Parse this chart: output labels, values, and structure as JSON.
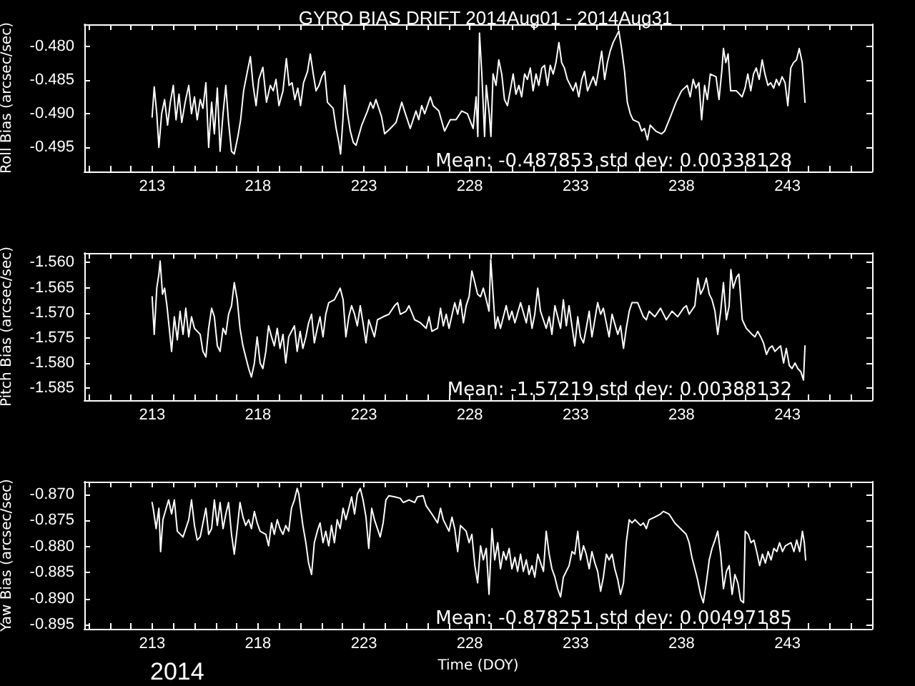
{
  "chart_data": [
    {
      "type": "line",
      "title": "GYRO BIAS DRIFT 2014Aug01 - 2014Aug31",
      "ylabel": "Roll Bias (arcsec/sec)",
      "annotations": [
        "Mean: -0.487853 std dev: 0.00338128"
      ],
      "color": "#ffffff",
      "xlim": [
        209.8,
        247
      ],
      "ylim": [
        -0.4986,
        -0.4767
      ],
      "xticks": [
        {
          "value": 210,
          "label": null
        },
        {
          "value": 211,
          "label": null
        },
        {
          "value": 212,
          "label": null
        },
        213,
        {
          "value": 214,
          "label": null
        },
        {
          "value": 215,
          "label": null
        },
        {
          "value": 216,
          "label": null
        },
        {
          "value": 217,
          "label": null
        },
        218,
        {
          "value": 219,
          "label": null
        },
        {
          "value": 220,
          "label": null
        },
        {
          "value": 221,
          "label": null
        },
        {
          "value": 222,
          "label": null
        },
        223,
        {
          "value": 224,
          "label": null
        },
        {
          "value": 225,
          "label": null
        },
        {
          "value": 226,
          "label": null
        },
        {
          "value": 227,
          "label": null
        },
        228,
        {
          "value": 229,
          "label": null
        },
        {
          "value": 230,
          "label": null
        },
        {
          "value": 231,
          "label": null
        },
        {
          "value": 232,
          "label": null
        },
        233,
        {
          "value": 234,
          "label": null
        },
        {
          "value": 235,
          "label": null
        },
        {
          "value": 236,
          "label": null
        },
        {
          "value": 237,
          "label": null
        },
        238,
        {
          "value": 239,
          "label": null
        },
        {
          "value": 240,
          "label": null
        },
        {
          "value": 241,
          "label": null
        },
        {
          "value": 242,
          "label": null
        },
        243,
        {
          "value": 244,
          "label": null
        },
        {
          "value": 245,
          "label": null
        },
        {
          "value": 246,
          "label": null
        }
      ],
      "yticks": [
        {
          "value": -0.495,
          "label": "-0.495"
        },
        {
          "value": -0.49,
          "label": "-0.490"
        },
        {
          "value": -0.485,
          "label": "-0.485"
        },
        {
          "value": -0.48,
          "label": "-0.480"
        }
      ],
      "x": [
        213.0,
        213.1,
        213.22,
        213.32,
        213.45,
        213.59,
        213.73,
        213.86,
        214.0,
        214.13,
        214.27,
        214.4,
        214.56,
        214.73,
        214.86,
        215.0,
        215.13,
        215.27,
        215.4,
        215.54,
        215.67,
        215.81,
        215.94,
        216.08,
        216.21,
        216.35,
        216.48,
        216.61,
        216.75,
        216.88,
        217.05,
        217.18,
        217.32,
        217.45,
        217.64,
        217.77,
        217.91,
        218.04,
        218.23,
        218.4,
        218.58,
        218.72,
        218.85,
        218.99,
        219.18,
        219.34,
        219.47,
        219.61,
        219.74,
        219.88,
        220.01,
        220.15,
        220.34,
        220.47,
        220.61,
        220.74,
        220.88,
        221.01,
        221.15,
        221.28,
        221.55,
        221.69,
        221.82,
        221.9,
        222.01,
        222.09,
        222.23,
        222.36,
        222.5,
        222.63,
        222.9,
        223.17,
        223.31,
        223.44,
        223.57,
        223.84,
        223.98,
        224.25,
        224.52,
        224.79,
        224.92,
        225.19,
        225.46,
        225.59,
        225.73,
        225.87,
        226.14,
        226.27,
        226.54,
        226.81,
        227.08,
        227.35,
        227.62,
        227.89,
        228.16,
        228.3,
        228.38,
        228.46,
        228.57,
        228.7,
        228.78,
        228.92,
        229.0,
        229.1,
        229.24,
        229.37,
        229.51,
        229.64,
        229.78,
        229.91,
        230.05,
        230.18,
        230.32,
        230.45,
        230.59,
        230.72,
        230.86,
        230.99,
        231.13,
        231.26,
        231.4,
        231.53,
        231.67,
        231.8,
        231.94,
        232.07,
        232.21,
        232.34,
        232.47,
        232.61,
        232.88,
        233.01,
        233.15,
        233.29,
        233.42,
        233.56,
        233.83,
        233.96,
        234.1,
        234.23,
        234.37,
        234.5,
        234.63,
        234.77,
        234.9,
        235.04,
        235.17,
        235.31,
        235.44,
        235.58,
        235.71,
        235.98,
        236.12,
        236.25,
        236.39,
        236.52,
        236.79,
        237.06,
        237.2,
        237.47,
        237.74,
        238.0,
        238.27,
        238.41,
        238.55,
        238.68,
        238.82,
        238.95,
        239.09,
        239.22,
        239.36,
        239.63,
        239.77,
        239.9,
        239.98,
        240.09,
        240.2,
        240.32,
        240.59,
        240.86,
        241.0,
        241.13,
        241.27,
        241.4,
        241.53,
        241.67,
        241.81,
        241.94,
        242.08,
        242.21,
        242.35,
        242.48,
        242.61,
        242.75,
        242.89,
        243.02,
        243.16,
        243.29,
        243.43,
        243.56,
        243.7,
        243.83
      ],
      "values": [
        -0.4905,
        -0.486,
        -0.49,
        -0.495,
        -0.49,
        -0.4879,
        -0.4917,
        -0.4883,
        -0.4858,
        -0.4909,
        -0.4871,
        -0.4913,
        -0.4883,
        -0.4858,
        -0.49,
        -0.4875,
        -0.4909,
        -0.4879,
        -0.4892,
        -0.4854,
        -0.495,
        -0.4883,
        -0.493,
        -0.4862,
        -0.4956,
        -0.49,
        -0.4858,
        -0.4913,
        -0.4956,
        -0.496,
        -0.4934,
        -0.4909,
        -0.4866,
        -0.4845,
        -0.4815,
        -0.4858,
        -0.4888,
        -0.4849,
        -0.4831,
        -0.4883,
        -0.4858,
        -0.4866,
        -0.4849,
        -0.4888,
        -0.4866,
        -0.4818,
        -0.4858,
        -0.4854,
        -0.4879,
        -0.4862,
        -0.4888,
        -0.4854,
        -0.4837,
        -0.4811,
        -0.4841,
        -0.4866,
        -0.4858,
        -0.4845,
        -0.4837,
        -0.4883,
        -0.4892,
        -0.4922,
        -0.4943,
        -0.496,
        -0.4909,
        -0.4858,
        -0.49,
        -0.4926,
        -0.4943,
        -0.4947,
        -0.4917,
        -0.4896,
        -0.4883,
        -0.4892,
        -0.4879,
        -0.4905,
        -0.493,
        -0.4922,
        -0.4913,
        -0.4883,
        -0.4896,
        -0.4922,
        -0.4896,
        -0.4909,
        -0.4888,
        -0.49,
        -0.4875,
        -0.4888,
        -0.4896,
        -0.4926,
        -0.4909,
        -0.4909,
        -0.4896,
        -0.49,
        -0.4922,
        -0.4875,
        -0.4934,
        -0.478,
        -0.4841,
        -0.4934,
        -0.4858,
        -0.49,
        -0.4934,
        -0.4841,
        -0.4858,
        -0.482,
        -0.4841,
        -0.4879,
        -0.4888,
        -0.4866,
        -0.4841,
        -0.4871,
        -0.4858,
        -0.4875,
        -0.4841,
        -0.4849,
        -0.4832,
        -0.4866,
        -0.4841,
        -0.4858,
        -0.4832,
        -0.4828,
        -0.4858,
        -0.4828,
        -0.4841,
        -0.4824,
        -0.4794,
        -0.4824,
        -0.4832,
        -0.4849,
        -0.4866,
        -0.4854,
        -0.4875,
        -0.4849,
        -0.4837,
        -0.4866,
        -0.4845,
        -0.4858,
        -0.4832,
        -0.4807,
        -0.4849,
        -0.4824,
        -0.4807,
        -0.4794,
        -0.4786,
        -0.4777,
        -0.4803,
        -0.4837,
        -0.4883,
        -0.49,
        -0.4909,
        -0.4913,
        -0.4926,
        -0.4922,
        -0.4939,
        -0.4917,
        -0.4926,
        -0.493,
        -0.4926,
        -0.4905,
        -0.4883,
        -0.4866,
        -0.4858,
        -0.4875,
        -0.4849,
        -0.4862,
        -0.4854,
        -0.4909,
        -0.4858,
        -0.4879,
        -0.4841,
        -0.4845,
        -0.4879,
        -0.4837,
        -0.4803,
        -0.4824,
        -0.4811,
        -0.4866,
        -0.4866,
        -0.4875,
        -0.4862,
        -0.4841,
        -0.4866,
        -0.4841,
        -0.4832,
        -0.4849,
        -0.482,
        -0.4841,
        -0.4858,
        -0.4854,
        -0.4862,
        -0.4849,
        -0.4858,
        -0.4845,
        -0.4854,
        -0.4888,
        -0.4832,
        -0.4824,
        -0.482,
        -0.4803,
        -0.4824,
        -0.4883
      ]
    },
    {
      "type": "line",
      "ylabel": "Pitch Bias (arcsec/sec)",
      "annotations": [
        "Mean: -1.57219 std dev: 0.00388132"
      ],
      "color": "#ffffff",
      "xlim": [
        209.8,
        247
      ],
      "ylim": [
        -1.5874,
        -1.5581
      ],
      "xticks": [
        {
          "value": 210,
          "label": null
        },
        {
          "value": 211,
          "label": null
        },
        {
          "value": 212,
          "label": null
        },
        213,
        {
          "value": 214,
          "label": null
        },
        {
          "value": 215,
          "label": null
        },
        {
          "value": 216,
          "label": null
        },
        {
          "value": 217,
          "label": null
        },
        218,
        {
          "value": 219,
          "label": null
        },
        {
          "value": 220,
          "label": null
        },
        {
          "value": 221,
          "label": null
        },
        {
          "value": 222,
          "label": null
        },
        223,
        {
          "value": 224,
          "label": null
        },
        {
          "value": 225,
          "label": null
        },
        {
          "value": 226,
          "label": null
        },
        {
          "value": 227,
          "label": null
        },
        228,
        {
          "value": 229,
          "label": null
        },
        {
          "value": 230,
          "label": null
        },
        {
          "value": 231,
          "label": null
        },
        {
          "value": 232,
          "label": null
        },
        233,
        {
          "value": 234,
          "label": null
        },
        {
          "value": 235,
          "label": null
        },
        {
          "value": 236,
          "label": null
        },
        {
          "value": 237,
          "label": null
        },
        238,
        {
          "value": 239,
          "label": null
        },
        {
          "value": 240,
          "label": null
        },
        {
          "value": 241,
          "label": null
        },
        {
          "value": 242,
          "label": null
        },
        243,
        {
          "value": 244,
          "label": null
        },
        {
          "value": 245,
          "label": null
        },
        {
          "value": 246,
          "label": null
        }
      ],
      "yticks": [
        {
          "value": -1.585,
          "label": "-1.585"
        },
        {
          "value": -1.58,
          "label": "-1.580"
        },
        {
          "value": -1.575,
          "label": "-1.575"
        },
        {
          "value": -1.57,
          "label": "-1.570"
        },
        {
          "value": -1.565,
          "label": "-1.565"
        },
        {
          "value": -1.56,
          "label": "-1.560"
        }
      ],
      "x": [
        213.0,
        213.1,
        213.22,
        213.32,
        213.38,
        213.49,
        213.59,
        213.7,
        213.81,
        213.92,
        214.05,
        214.19,
        214.32,
        214.46,
        214.59,
        214.73,
        214.86,
        215.0,
        215.27,
        215.4,
        215.54,
        215.67,
        215.81,
        215.94,
        216.08,
        216.21,
        216.35,
        216.48,
        216.61,
        216.75,
        216.88,
        217.02,
        217.15,
        217.29,
        217.42,
        217.56,
        217.69,
        217.83,
        217.96,
        218.1,
        218.23,
        218.37,
        218.5,
        218.64,
        218.77,
        218.91,
        219.04,
        219.18,
        219.31,
        219.45,
        219.72,
        219.85,
        219.99,
        220.12,
        220.26,
        220.39,
        220.53,
        220.66,
        220.8,
        220.93,
        221.07,
        221.2,
        221.34,
        221.61,
        221.88,
        222.02,
        222.15,
        222.29,
        222.42,
        222.56,
        222.69,
        222.83,
        222.96,
        223.1,
        223.23,
        223.5,
        223.64,
        223.91,
        224.18,
        224.45,
        224.59,
        224.72,
        224.99,
        225.13,
        225.4,
        225.67,
        225.94,
        226.08,
        226.21,
        226.48,
        226.62,
        226.75,
        226.89,
        227.02,
        227.29,
        227.43,
        227.56,
        227.7,
        227.83,
        227.97,
        228.1,
        228.24,
        228.37,
        228.51,
        228.64,
        228.78,
        228.91,
        228.99,
        229.1,
        229.21,
        229.32,
        229.45,
        229.72,
        229.86,
        229.99,
        230.13,
        230.4,
        230.67,
        230.8,
        230.94,
        231.07,
        231.21,
        231.34,
        231.61,
        231.75,
        231.88,
        232.02,
        232.29,
        232.42,
        232.56,
        232.69,
        232.96,
        233.1,
        233.23,
        233.37,
        233.5,
        233.64,
        233.77,
        234.04,
        234.18,
        234.31,
        234.58,
        234.72,
        234.99,
        235.12,
        235.26,
        235.39,
        235.53,
        235.66,
        235.93,
        236.2,
        236.34,
        236.47,
        236.74,
        237.01,
        237.28,
        237.55,
        237.82,
        238.09,
        238.23,
        238.36,
        238.63,
        238.77,
        238.9,
        239.04,
        239.17,
        239.31,
        239.44,
        239.58,
        239.71,
        239.85,
        239.98,
        240.12,
        240.25,
        240.33,
        240.44,
        240.6,
        240.71,
        240.87,
        241.06,
        241.33,
        241.47,
        241.6,
        241.74,
        241.87,
        242.01,
        242.14,
        242.28,
        242.41,
        242.55,
        242.68,
        242.82,
        242.95,
        243.09,
        243.22,
        243.36,
        243.49,
        243.63,
        243.76,
        243.83
      ],
      "values": [
        -1.5668,
        -1.5743,
        -1.5651,
        -1.5623,
        -1.5597,
        -1.5663,
        -1.5651,
        -1.5686,
        -1.5731,
        -1.5777,
        -1.5708,
        -1.5754,
        -1.5697,
        -1.5743,
        -1.5691,
        -1.5748,
        -1.5708,
        -1.5731,
        -1.5743,
        -1.5777,
        -1.5788,
        -1.5731,
        -1.5691,
        -1.5708,
        -1.5766,
        -1.5777,
        -1.5731,
        -1.5743,
        -1.5703,
        -1.5686,
        -1.564,
        -1.5674,
        -1.5731,
        -1.5766,
        -1.5788,
        -1.5811,
        -1.5828,
        -1.58,
        -1.5748,
        -1.58,
        -1.5811,
        -1.5777,
        -1.5726,
        -1.5748,
        -1.5766,
        -1.5731,
        -1.5771,
        -1.5743,
        -1.58,
        -1.5748,
        -1.5726,
        -1.5777,
        -1.5737,
        -1.5771,
        -1.5748,
        -1.572,
        -1.5703,
        -1.576,
        -1.5731,
        -1.5708,
        -1.5748,
        -1.5703,
        -1.568,
        -1.5674,
        -1.5651,
        -1.5674,
        -1.5748,
        -1.5708,
        -1.5686,
        -1.5703,
        -1.5726,
        -1.5686,
        -1.572,
        -1.576,
        -1.5714,
        -1.5748,
        -1.5714,
        -1.5708,
        -1.5703,
        -1.5686,
        -1.568,
        -1.5703,
        -1.5697,
        -1.5686,
        -1.5714,
        -1.572,
        -1.5731,
        -1.5708,
        -1.5737,
        -1.5731,
        -1.5691,
        -1.5726,
        -1.5703,
        -1.5731,
        -1.568,
        -1.5703,
        -1.5674,
        -1.572,
        -1.5686,
        -1.5668,
        -1.5617,
        -1.564,
        -1.5663,
        -1.5668,
        -1.5651,
        -1.5674,
        -1.5697,
        -1.5594,
        -1.5663,
        -1.5731,
        -1.5708,
        -1.5731,
        -1.5686,
        -1.5714,
        -1.5697,
        -1.572,
        -1.568,
        -1.572,
        -1.5686,
        -1.5731,
        -1.5703,
        -1.5651,
        -1.5697,
        -1.5731,
        -1.5708,
        -1.5743,
        -1.5686,
        -1.5731,
        -1.5674,
        -1.5726,
        -1.5686,
        -1.5766,
        -1.5708,
        -1.5748,
        -1.576,
        -1.5731,
        -1.5697,
        -1.5748,
        -1.568,
        -1.5703,
        -1.5691,
        -1.5748,
        -1.5703,
        -1.5743,
        -1.5726,
        -1.5771,
        -1.5731,
        -1.5697,
        -1.568,
        -1.568,
        -1.5708,
        -1.5714,
        -1.5697,
        -1.5708,
        -1.5691,
        -1.5714,
        -1.5697,
        -1.5708,
        -1.5691,
        -1.5686,
        -1.5703,
        -1.5686,
        -1.5631,
        -1.5663,
        -1.5651,
        -1.5631,
        -1.5663,
        -1.5674,
        -1.5697,
        -1.5743,
        -1.5697,
        -1.564,
        -1.5714,
        -1.5686,
        -1.5614,
        -1.5651,
        -1.5629,
        -1.5623,
        -1.5714,
        -1.5731,
        -1.5743,
        -1.5748,
        -1.5737,
        -1.5748,
        -1.576,
        -1.5783,
        -1.5771,
        -1.5766,
        -1.5777,
        -1.5771,
        -1.5766,
        -1.58,
        -1.5771,
        -1.5805,
        -1.5811,
        -1.58,
        -1.5811,
        -1.5817,
        -1.5834,
        -1.5766
      ]
    },
    {
      "type": "line",
      "ylabel": "Yaw Bias (arcsec/sec)",
      "xlabel": "Time (DOY)",
      "annotations": [
        "Mean: -0.878251 std dev: 0.00497185",
        "2014"
      ],
      "color": "#ffffff",
      "xlim": [
        209.8,
        247
      ],
      "ylim": [
        -0.8958,
        -0.8676
      ],
      "xticks": [
        {
          "value": 210,
          "label": null
        },
        {
          "value": 211,
          "label": null
        },
        {
          "value": 212,
          "label": null
        },
        213,
        {
          "value": 214,
          "label": null
        },
        {
          "value": 215,
          "label": null
        },
        {
          "value": 216,
          "label": null
        },
        {
          "value": 217,
          "label": null
        },
        218,
        {
          "value": 219,
          "label": null
        },
        {
          "value": 220,
          "label": null
        },
        {
          "value": 221,
          "label": null
        },
        {
          "value": 222,
          "label": null
        },
        223,
        {
          "value": 224,
          "label": null
        },
        {
          "value": 225,
          "label": null
        },
        {
          "value": 226,
          "label": null
        },
        {
          "value": 227,
          "label": null
        },
        228,
        {
          "value": 229,
          "label": null
        },
        {
          "value": 230,
          "label": null
        },
        {
          "value": 231,
          "label": null
        },
        {
          "value": 232,
          "label": null
        },
        233,
        {
          "value": 234,
          "label": null
        },
        {
          "value": 235,
          "label": null
        },
        {
          "value": 236,
          "label": null
        },
        {
          "value": 237,
          "label": null
        },
        238,
        {
          "value": 239,
          "label": null
        },
        {
          "value": 240,
          "label": null
        },
        {
          "value": 241,
          "label": null
        },
        {
          "value": 242,
          "label": null
        },
        243,
        {
          "value": 244,
          "label": null
        },
        {
          "value": 245,
          "label": null
        },
        {
          "value": 246,
          "label": null
        }
      ],
      "yticks": [
        {
          "value": -0.895,
          "label": "-0.895"
        },
        {
          "value": -0.89,
          "label": "-0.890"
        },
        {
          "value": -0.885,
          "label": "-0.885"
        },
        {
          "value": -0.88,
          "label": "-0.880"
        },
        {
          "value": -0.875,
          "label": "-0.875"
        },
        {
          "value": -0.87,
          "label": "-0.870"
        }
      ],
      "x": [
        213.0,
        213.05,
        213.19,
        213.32,
        213.4,
        213.51,
        213.78,
        213.92,
        214.05,
        214.19,
        214.46,
        214.73,
        214.86,
        215.0,
        215.13,
        215.27,
        215.54,
        215.67,
        215.81,
        215.94,
        216.08,
        216.21,
        216.35,
        216.48,
        216.61,
        216.75,
        216.88,
        217.02,
        217.15,
        217.29,
        217.42,
        217.56,
        217.69,
        217.83,
        217.96,
        218.1,
        218.37,
        218.5,
        218.64,
        218.77,
        218.91,
        219.04,
        219.18,
        219.31,
        219.45,
        219.58,
        219.72,
        219.85,
        219.93,
        220.01,
        220.12,
        220.26,
        220.39,
        220.53,
        220.66,
        220.8,
        220.93,
        221.07,
        221.2,
        221.34,
        221.47,
        221.61,
        221.74,
        221.88,
        222.02,
        222.15,
        222.29,
        222.42,
        222.56,
        222.69,
        222.83,
        222.96,
        223.1,
        223.23,
        223.37,
        223.5,
        223.77,
        223.91,
        224.04,
        224.18,
        224.45,
        224.72,
        224.86,
        225.13,
        225.4,
        225.53,
        225.8,
        225.94,
        226.21,
        226.48,
        226.62,
        226.75,
        227.02,
        227.16,
        227.29,
        227.43,
        227.56,
        227.83,
        227.97,
        228.1,
        228.24,
        228.37,
        228.51,
        228.64,
        228.78,
        228.91,
        229.05,
        229.18,
        229.32,
        229.45,
        229.59,
        229.72,
        229.86,
        229.99,
        230.13,
        230.26,
        230.4,
        230.53,
        230.67,
        230.8,
        230.94,
        231.07,
        231.21,
        231.48,
        231.61,
        231.75,
        231.88,
        232.02,
        232.15,
        232.29,
        232.42,
        232.69,
        232.83,
        232.96,
        233.1,
        233.23,
        233.37,
        233.5,
        233.64,
        233.77,
        233.91,
        234.04,
        234.18,
        234.31,
        234.45,
        234.58,
        234.72,
        234.85,
        234.99,
        235.12,
        235.26,
        235.39,
        235.53,
        235.66,
        235.8,
        236.07,
        236.2,
        236.34,
        236.47,
        236.74,
        237.01,
        237.14,
        237.41,
        237.68,
        237.95,
        238.22,
        238.36,
        238.49,
        238.63,
        238.76,
        238.9,
        239.03,
        239.17,
        239.31,
        239.44,
        239.58,
        239.71,
        239.85,
        239.98,
        240.12,
        240.25,
        240.39,
        240.52,
        240.66,
        240.79,
        240.93,
        241.01,
        241.15,
        241.28,
        241.42,
        241.55,
        241.69,
        241.82,
        241.96,
        242.09,
        242.23,
        242.36,
        242.5,
        242.63,
        242.77,
        242.9,
        243.17,
        243.31,
        243.44,
        243.58,
        243.71,
        243.8,
        243.86
      ],
      "values": [
        -0.8716,
        -0.8727,
        -0.8766,
        -0.8727,
        -0.881,
        -0.8749,
        -0.8711,
        -0.8738,
        -0.8711,
        -0.8771,
        -0.8782,
        -0.8749,
        -0.8711,
        -0.876,
        -0.8788,
        -0.8782,
        -0.8727,
        -0.8777,
        -0.8766,
        -0.8711,
        -0.876,
        -0.8716,
        -0.8766,
        -0.8738,
        -0.8716,
        -0.8777,
        -0.8815,
        -0.8766,
        -0.8716,
        -0.8744,
        -0.876,
        -0.8749,
        -0.8766,
        -0.8733,
        -0.8755,
        -0.8771,
        -0.8777,
        -0.8799,
        -0.8755,
        -0.8777,
        -0.8749,
        -0.8766,
        -0.8777,
        -0.876,
        -0.8771,
        -0.8727,
        -0.8711,
        -0.8689,
        -0.87,
        -0.8727,
        -0.876,
        -0.8793,
        -0.8832,
        -0.8854,
        -0.8793,
        -0.8771,
        -0.8755,
        -0.8793,
        -0.8771,
        -0.8799,
        -0.876,
        -0.8793,
        -0.8749,
        -0.8766,
        -0.8727,
        -0.8749,
        -0.8727,
        -0.8705,
        -0.8738,
        -0.87,
        -0.8689,
        -0.8711,
        -0.8744,
        -0.8804,
        -0.8727,
        -0.8749,
        -0.8782,
        -0.8755,
        -0.8711,
        -0.8703,
        -0.8705,
        -0.8708,
        -0.8716,
        -0.8711,
        -0.8716,
        -0.8705,
        -0.8703,
        -0.8722,
        -0.8738,
        -0.8755,
        -0.8727,
        -0.8749,
        -0.8771,
        -0.8744,
        -0.8766,
        -0.881,
        -0.876,
        -0.8771,
        -0.8793,
        -0.8777,
        -0.8837,
        -0.887,
        -0.8799,
        -0.8826,
        -0.8804,
        -0.8892,
        -0.8766,
        -0.8826,
        -0.8793,
        -0.8843,
        -0.881,
        -0.8826,
        -0.8804,
        -0.8843,
        -0.8821,
        -0.8848,
        -0.8815,
        -0.8848,
        -0.8826,
        -0.8854,
        -0.8837,
        -0.8859,
        -0.8815,
        -0.8848,
        -0.8771,
        -0.8815,
        -0.8843,
        -0.8859,
        -0.8881,
        -0.8897,
        -0.8859,
        -0.8837,
        -0.881,
        -0.8815,
        -0.8771,
        -0.8826,
        -0.8799,
        -0.8815,
        -0.8843,
        -0.881,
        -0.8832,
        -0.8848,
        -0.8886,
        -0.8859,
        -0.8815,
        -0.8826,
        -0.8815,
        -0.8843,
        -0.8864,
        -0.8892,
        -0.887,
        -0.8793,
        -0.8749,
        -0.8755,
        -0.8749,
        -0.876,
        -0.8755,
        -0.8766,
        -0.8749,
        -0.8744,
        -0.8738,
        -0.8733,
        -0.8738,
        -0.8755,
        -0.8766,
        -0.8777,
        -0.8793,
        -0.8821,
        -0.8843,
        -0.8864,
        -0.8892,
        -0.8908,
        -0.887,
        -0.8826,
        -0.8804,
        -0.8788,
        -0.8771,
        -0.8815,
        -0.8881,
        -0.8848,
        -0.8837,
        -0.8892,
        -0.8854,
        -0.887,
        -0.8903,
        -0.8908,
        -0.8771,
        -0.8777,
        -0.8793,
        -0.8788,
        -0.881,
        -0.8837,
        -0.8815,
        -0.8832,
        -0.881,
        -0.8826,
        -0.8804,
        -0.881,
        -0.8793,
        -0.881,
        -0.8799,
        -0.8793,
        -0.881,
        -0.8788,
        -0.881,
        -0.8771,
        -0.8793,
        -0.8826
      ]
    }
  ]
}
